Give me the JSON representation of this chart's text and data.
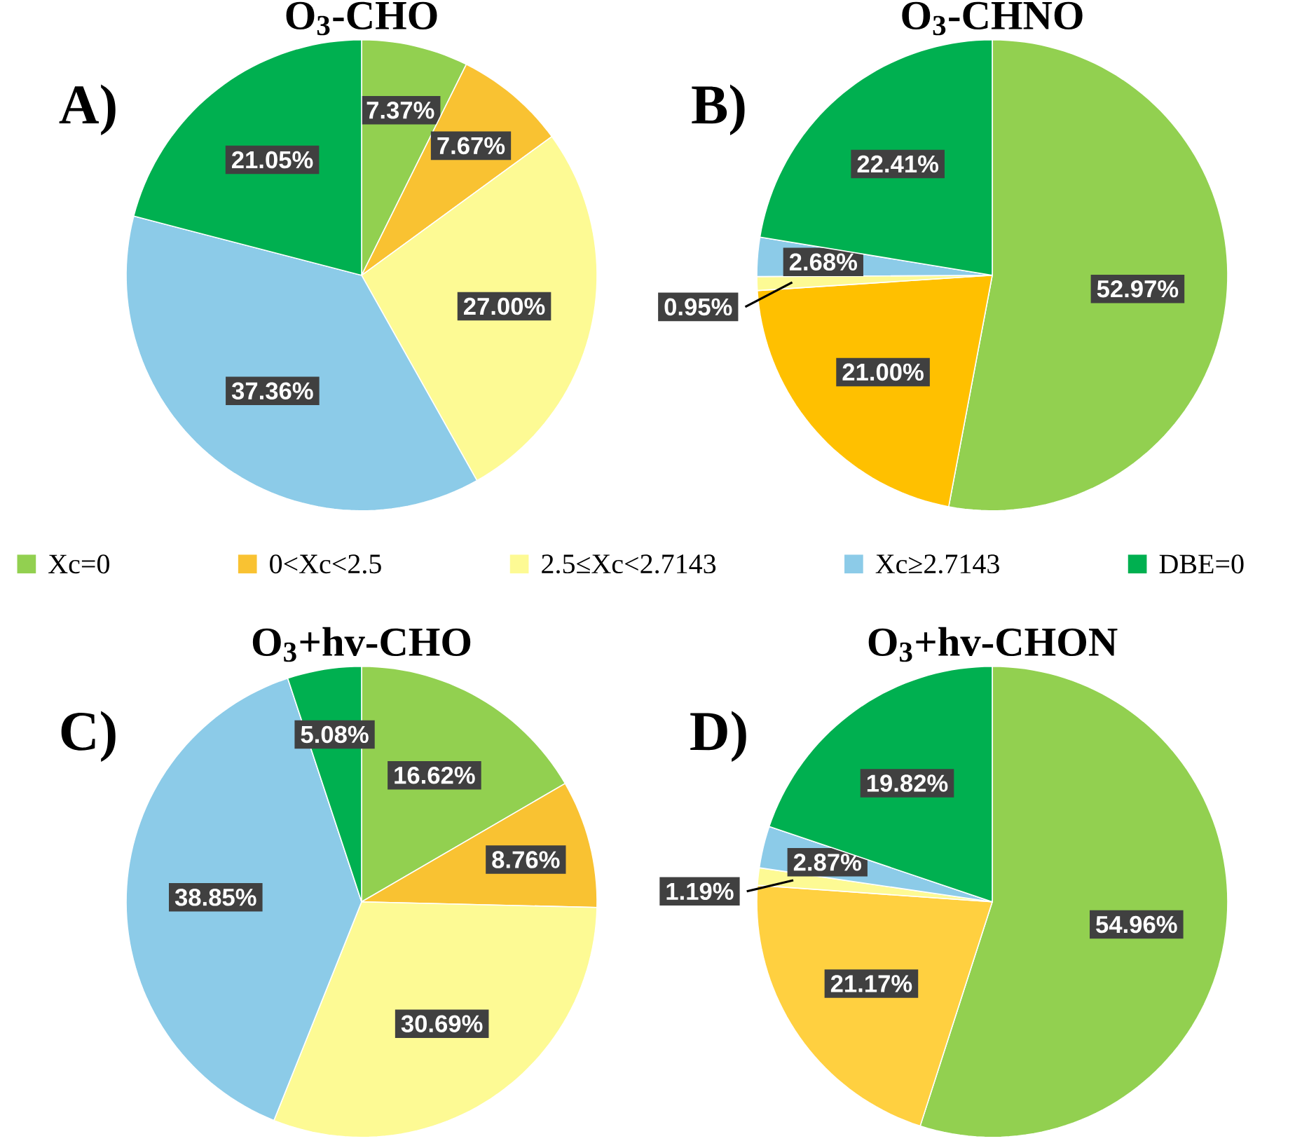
{
  "chart_data": [
    {
      "type": "pie",
      "title": "O$_{3}$-CHO",
      "annotations": [
        "A)"
      ],
      "categories": [
        "Xc=0",
        "0<Xc<2.5",
        "2.5≤Xc<2.7143",
        "Xc≥2.7143",
        "DBE=0"
      ],
      "values": [
        7.37,
        7.67,
        27.0,
        37.36,
        21.05
      ],
      "value_labels": [
        "7.37%",
        "7.67%",
        "27.00%",
        "37.36%",
        "21.05%"
      ],
      "colors": [
        "#92d050",
        "#f9c232",
        "#fdfa94",
        "#8ccbe8",
        "#00b050"
      ],
      "legend": "bottom"
    },
    {
      "type": "pie",
      "title": "O$_{3}$-CHNO",
      "annotations": [
        "B)"
      ],
      "categories": [
        null,
        null,
        null,
        null,
        null
      ],
      "values": [
        52.97,
        21.0,
        0.95,
        2.68,
        22.41
      ],
      "value_labels": [
        "52.97%",
        "21.00%",
        "0.95%",
        "2.68%",
        "22.41%"
      ],
      "colors": [
        "#92d050",
        "#ffc000",
        "#fdfa94",
        "#8ccbe8",
        "#00b050"
      ]
    },
    {
      "type": "pie",
      "title": "O$_{3}$+hv-CHO",
      "annotations": [
        "C)"
      ],
      "categories": [
        null,
        null,
        null,
        null,
        null
      ],
      "values": [
        16.62,
        8.76,
        30.69,
        38.85,
        5.08
      ],
      "value_labels": [
        "16.62%",
        "8.76%",
        "30.69%",
        "38.85%",
        "5.08%"
      ],
      "colors": [
        "#92d050",
        "#f9c232",
        "#fdfa94",
        "#8ccbe8",
        "#00b050"
      ]
    },
    {
      "type": "pie",
      "title": "O$_{3}$+hv-CHON",
      "annotations": [
        "D)"
      ],
      "categories": [
        null,
        null,
        null,
        null,
        null
      ],
      "values": [
        54.96,
        21.17,
        1.19,
        2.87,
        19.82
      ],
      "value_labels": [
        "54.96%",
        "21.17%",
        "1.19%",
        "2.87%",
        "19.82%"
      ],
      "colors": [
        "#92d050",
        "#ffd040",
        "#fdfa94",
        "#8ccbe8",
        "#00b050"
      ]
    }
  ]
}
